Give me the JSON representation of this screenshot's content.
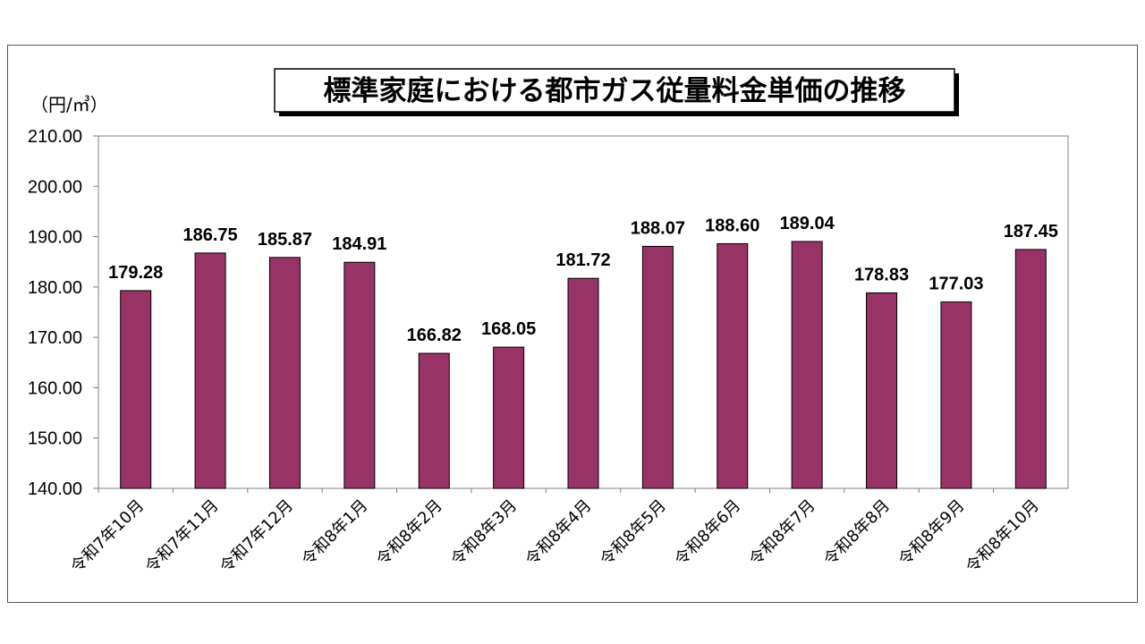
{
  "chart_data": {
    "type": "bar",
    "title": "標準家庭における都市ガス従量料金単価の推移",
    "unit_label": "（円/㎥）",
    "categories": [
      "令和7年10月",
      "令和7年11月",
      "令和7年12月",
      "令和8年1月",
      "令和8年2月",
      "令和8年3月",
      "令和8年4月",
      "令和8年5月",
      "令和8年6月",
      "令和8年7月",
      "令和8年8月",
      "令和8年9月",
      "令和8年10月"
    ],
    "values": [
      179.28,
      186.75,
      185.87,
      184.91,
      166.82,
      168.05,
      181.72,
      188.07,
      188.6,
      189.04,
      178.83,
      177.03,
      187.45
    ],
    "value_labels": [
      "179.28",
      "186.75",
      "185.87",
      "184.91",
      "166.82",
      "168.05",
      "181.72",
      "188.07",
      "188.60",
      "189.04",
      "178.83",
      "177.03",
      "187.45"
    ],
    "y_ticks": [
      140,
      150,
      160,
      170,
      180,
      190,
      200,
      210
    ],
    "y_tick_labels": [
      "140.00",
      "150.00",
      "160.00",
      "170.00",
      "180.00",
      "190.00",
      "200.00",
      "210.00"
    ],
    "ylim": [
      140,
      210
    ],
    "grid": false,
    "legend": "none",
    "bar_color": "#993366"
  }
}
